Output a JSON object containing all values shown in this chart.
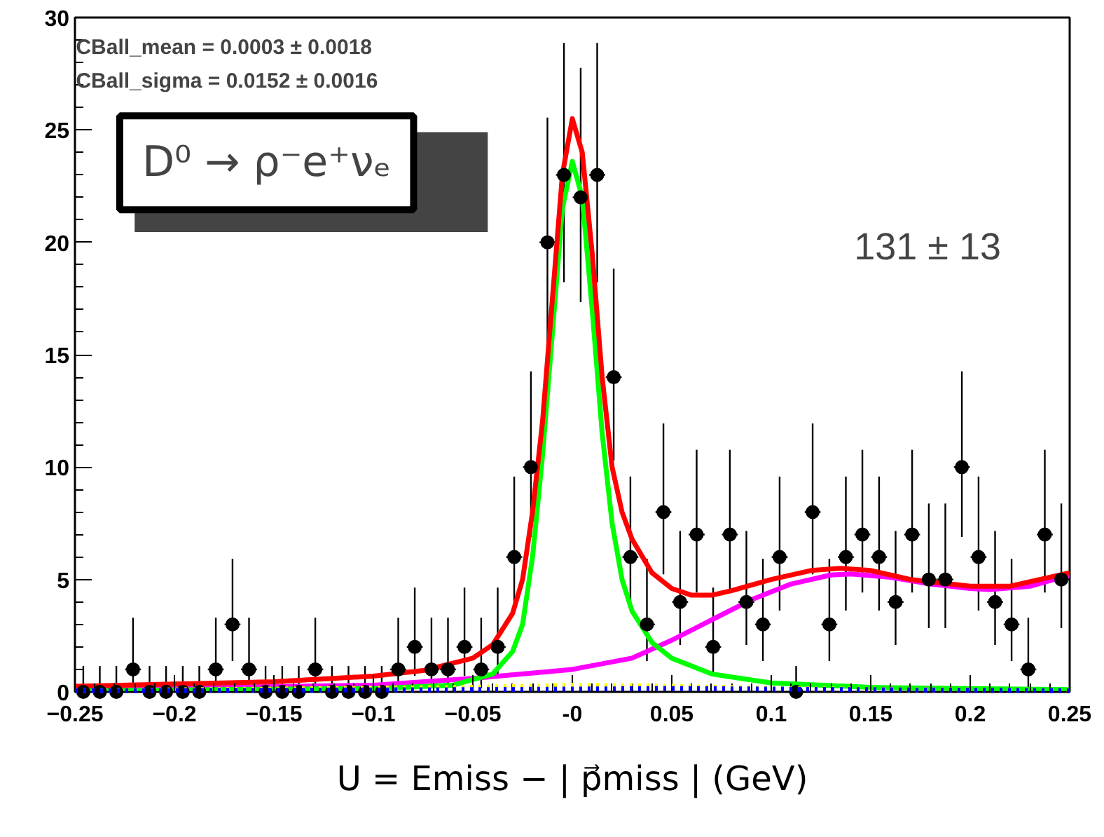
{
  "chart_data": {
    "type": "scatter",
    "title": "D⁰ → ρ⁻e⁺νₑ",
    "xlabel": "U = Emiss − | p⃗miss | (GeV)",
    "annotations": [
      "CBall_mean =  0.0003 ± 0.0018",
      "CBall_sigma =  0.0152 ± 0.0016",
      "131 ± 13"
    ],
    "xlim": [
      -0.25,
      0.25
    ],
    "xticks": [
      -0.25,
      -0.2,
      -0.15,
      -0.1,
      -0.05,
      {
        "value": 0,
        "label": "-0"
      },
      0.05,
      0.1,
      0.15,
      0.2,
      0.25
    ],
    "ylim": [
      0,
      30
    ],
    "yticks": [
      0,
      5,
      10,
      15,
      20,
      25,
      30
    ],
    "line_style": "solid",
    "series": [
      {
        "color": "#000000",
        "marker": "circle",
        "x": [
          -0.2458,
          -0.2375,
          -0.2292,
          -0.2208,
          -0.2125,
          -0.2042,
          -0.1958,
          -0.1875,
          -0.1792,
          -0.1708,
          -0.1625,
          -0.1542,
          -0.1458,
          -0.1375,
          -0.1292,
          -0.1208,
          -0.1125,
          -0.1042,
          -0.0958,
          -0.0875,
          -0.0792,
          -0.0708,
          -0.0625,
          -0.0542,
          -0.0458,
          -0.0375,
          -0.0292,
          -0.0208,
          -0.0125,
          -0.0042,
          0.0042,
          0.0125,
          0.0208,
          0.0292,
          0.0375,
          0.0458,
          0.0542,
          0.0625,
          0.0708,
          0.0792,
          0.0875,
          0.0958,
          0.1042,
          0.1125,
          0.1208,
          0.1292,
          0.1375,
          0.1458,
          0.1542,
          0.1625,
          0.1708,
          0.1792,
          0.1875,
          0.1958,
          0.2042,
          0.2125,
          0.2208,
          0.2292,
          0.2375,
          0.2458
        ],
        "values": [
          0,
          0,
          0,
          1,
          0,
          0,
          0,
          0,
          1,
          3,
          1,
          0,
          0,
          0,
          1,
          0,
          0,
          0,
          0,
          1,
          2,
          1,
          1,
          2,
          1,
          2,
          6,
          10,
          20,
          23,
          22,
          23,
          14,
          6,
          3,
          8,
          4,
          7,
          2,
          7,
          4,
          3,
          6,
          0,
          8,
          3,
          6,
          7,
          6,
          4,
          7,
          5,
          5,
          10,
          6,
          4,
          3,
          1,
          7,
          5
        ],
        "errors": [
          [
            0,
            1.15
          ],
          [
            0,
            1.15
          ],
          [
            0,
            1.15
          ],
          [
            0.17,
            3.3
          ],
          [
            0,
            1.15
          ],
          [
            0,
            1.15
          ],
          [
            0,
            1.15
          ],
          [
            0,
            1.15
          ],
          [
            0.17,
            3.3
          ],
          [
            1.37,
            5.92
          ],
          [
            0.17,
            3.3
          ],
          [
            0,
            1.15
          ],
          [
            0,
            1.15
          ],
          [
            0,
            1.15
          ],
          [
            0.17,
            3.3
          ],
          [
            0,
            1.15
          ],
          [
            0,
            1.15
          ],
          [
            0,
            1.15
          ],
          [
            0,
            1.15
          ],
          [
            0.17,
            3.3
          ],
          [
            0.71,
            4.64
          ],
          [
            0.17,
            3.3
          ],
          [
            0.17,
            3.3
          ],
          [
            0.71,
            4.64
          ],
          [
            0.17,
            3.3
          ],
          [
            0.71,
            4.64
          ],
          [
            3.62,
            9.58
          ],
          [
            6.89,
            14.26
          ],
          [
            15.56,
            25.55
          ],
          [
            18.23,
            28.87
          ],
          [
            17.34,
            27.76
          ],
          [
            18.23,
            28.87
          ],
          [
            10.3,
            18.83
          ],
          [
            3.62,
            9.58
          ],
          [
            1.37,
            5.92
          ],
          [
            5.23,
            11.94
          ],
          [
            2.09,
            7.16
          ],
          [
            4.42,
            10.77
          ],
          [
            0.71,
            4.64
          ],
          [
            4.42,
            10.77
          ],
          [
            2.09,
            7.16
          ],
          [
            1.37,
            5.92
          ],
          [
            3.62,
            9.58
          ],
          [
            0,
            1.15
          ],
          [
            5.23,
            11.94
          ],
          [
            1.37,
            5.92
          ],
          [
            3.62,
            9.58
          ],
          [
            4.42,
            10.77
          ],
          [
            3.62,
            9.58
          ],
          [
            2.09,
            7.16
          ],
          [
            4.42,
            10.77
          ],
          [
            2.84,
            8.38
          ],
          [
            2.84,
            8.38
          ],
          [
            6.89,
            14.26
          ],
          [
            3.62,
            9.58
          ],
          [
            2.09,
            7.16
          ],
          [
            1.37,
            5.92
          ],
          [
            0.17,
            3.3
          ],
          [
            4.42,
            10.77
          ],
          [
            2.84,
            8.38
          ]
        ],
        "xerrors": [
          0.004,
          0.004,
          0.004,
          0.004,
          0.004,
          0.004,
          0.004,
          0.004,
          0.004,
          0.004,
          0.004,
          0.004,
          0.004,
          0.004,
          0.004,
          0.004,
          0.004,
          0.004,
          0.004,
          0.004,
          0.004,
          0.004,
          0.004,
          0.004,
          0.004,
          0.004,
          0.004,
          0.004,
          0.004,
          0.004,
          0.004,
          0.004,
          0.004,
          0.004,
          0.004,
          0.004,
          0.004,
          0.004,
          0.004,
          0.004,
          0.004,
          0.004,
          0.004,
          0.004,
          0.004,
          0.004,
          0.004,
          0.004,
          0.004,
          0.004,
          0.004,
          0.004,
          0.004,
          0.004,
          0.004,
          0.004,
          0.004,
          0.004,
          0.004,
          0.004
        ]
      },
      {
        "type": "line",
        "color": "#ff00ff",
        "x": [
          -0.25,
          -0.1,
          -0.05,
          0,
          0.03,
          0.05,
          0.07,
          0.09,
          0.11,
          0.13,
          0.14,
          0.16,
          0.18,
          0.2,
          0.21,
          0.23,
          0.25
        ],
        "values": [
          0.1,
          0.3,
          0.6,
          1.0,
          1.5,
          2.3,
          3.2,
          4.1,
          4.8,
          5.2,
          5.25,
          5.1,
          4.8,
          4.6,
          4.55,
          4.7,
          5.2
        ]
      },
      {
        "type": "line",
        "color": "#ffff00",
        "line_style": "dotted",
        "x": [
          -0.25,
          -0.05,
          0,
          0.05,
          0.1,
          0.25
        ],
        "values": [
          0.05,
          0.2,
          0.3,
          0.25,
          0.15,
          0.05
        ]
      },
      {
        "type": "line",
        "color": "#0000ff",
        "line_style": "dotted",
        "x": [
          -0.25,
          -0.05,
          0.05,
          0.15,
          0.25
        ],
        "values": [
          0.05,
          0.1,
          0.15,
          0.1,
          0.05
        ]
      },
      {
        "type": "line",
        "color": "#00ff00",
        "x": [
          -0.25,
          -0.1,
          -0.06,
          -0.04,
          -0.03,
          -0.025,
          -0.02,
          -0.015,
          -0.01,
          -0.005,
          0,
          0.005,
          0.01,
          0.015,
          0.02,
          0.025,
          0.03,
          0.04,
          0.05,
          0.07,
          0.1,
          0.15,
          0.25
        ],
        "values": [
          0.05,
          0.15,
          0.3,
          0.8,
          1.8,
          3,
          6,
          10.5,
          16,
          21.5,
          23.6,
          22,
          17,
          11.5,
          7.5,
          5,
          3.6,
          2.2,
          1.5,
          0.8,
          0.4,
          0.2,
          0.1
        ]
      },
      {
        "type": "line",
        "color": "#ff0000",
        "x": [
          -0.25,
          -0.2,
          -0.15,
          -0.1,
          -0.075,
          -0.05,
          -0.04,
          -0.03,
          -0.025,
          -0.02,
          -0.015,
          -0.01,
          -0.005,
          0,
          0.005,
          0.01,
          0.015,
          0.02,
          0.025,
          0.03,
          0.04,
          0.05,
          0.06,
          0.07,
          0.08,
          0.1,
          0.12,
          0.135,
          0.15,
          0.17,
          0.2,
          0.22,
          0.25
        ],
        "values": [
          0.25,
          0.35,
          0.45,
          0.7,
          0.95,
          1.5,
          2.1,
          3.5,
          5,
          8,
          12,
          17.5,
          23,
          25.5,
          24,
          19.5,
          14,
          10,
          8,
          6.8,
          5.3,
          4.6,
          4.3,
          4.3,
          4.5,
          5.0,
          5.4,
          5.5,
          5.4,
          5.0,
          4.7,
          4.7,
          5.3
        ]
      }
    ]
  }
}
